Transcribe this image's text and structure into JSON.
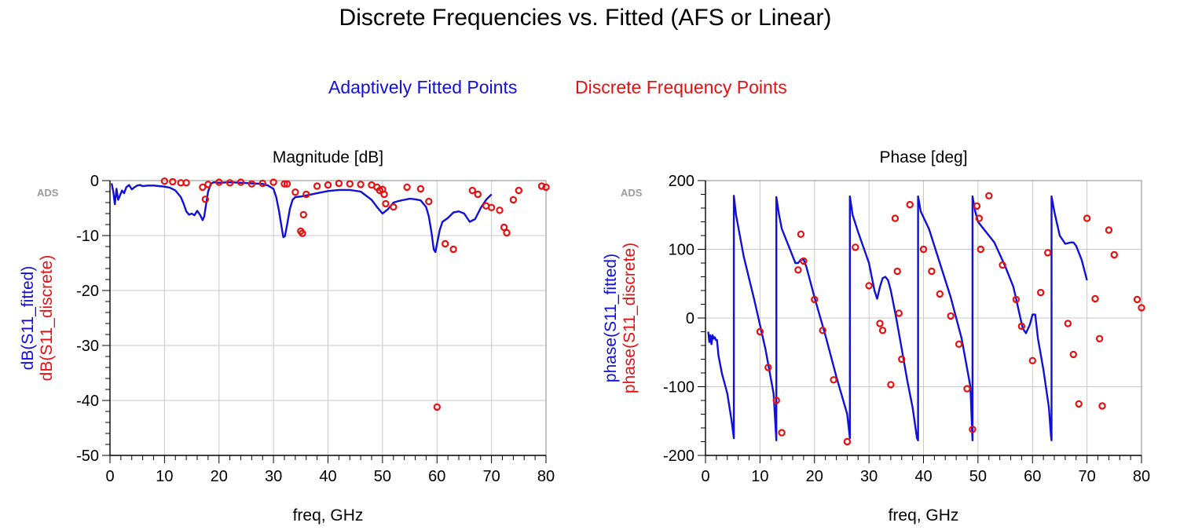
{
  "title": "Discrete Frequencies vs. Fitted (AFS or Linear)",
  "legend": {
    "fitted_label": "Adaptively Fitted Points",
    "discrete_label": "Discrete Frequency Points"
  },
  "colors": {
    "fitted": "#1010d8",
    "discrete": "#e61010",
    "grid": "#c8c8c8"
  },
  "watermark": "ADS",
  "chart_data": [
    {
      "type": "line",
      "title": "Magnitude [dB]",
      "xlabel": "freq, GHz",
      "ylabel_fitted": "dB(S11_fitted)",
      "ylabel_discrete": "dB(S11_discrete)",
      "xlim": [
        0,
        80
      ],
      "ylim": [
        -50,
        0
      ],
      "xticks": [
        0,
        10,
        20,
        30,
        40,
        50,
        60,
        70,
        80
      ],
      "yticks": [
        0,
        -10,
        -20,
        -30,
        -40,
        -50
      ],
      "grid": true,
      "series": [
        {
          "name": "Adaptively Fitted Points",
          "style": "line",
          "x": [
            0.3,
            0.6,
            0.9,
            1.2,
            1.5,
            1.8,
            2.2,
            2.6,
            3,
            3.5,
            4,
            4.5,
            5,
            5.5,
            6,
            7,
            8,
            9,
            10,
            11,
            12,
            13,
            13.5,
            14,
            14.5,
            15,
            15.5,
            16,
            16.5,
            17,
            17.3,
            17.6,
            18,
            18.5,
            19,
            20,
            22,
            24,
            26,
            28,
            29,
            30,
            30.5,
            31,
            31.5,
            31.8,
            32.1,
            32.5,
            33,
            33.5,
            34,
            35,
            36,
            38,
            40,
            42,
            44,
            46,
            48,
            49,
            50,
            51,
            52,
            53,
            54,
            55,
            56,
            57,
            58,
            58.5,
            59,
            59.4,
            59.7,
            60,
            60.5,
            61,
            62,
            63,
            64,
            65,
            66,
            67,
            68,
            69,
            70
          ],
          "values": [
            -0.5,
            -2,
            -4.3,
            -1.5,
            -3.5,
            -2.8,
            -1.8,
            -2.3,
            -1.2,
            -0.8,
            -1.6,
            -1.2,
            -0.9,
            -0.8,
            -1.0,
            -0.9,
            -0.9,
            -1.0,
            -1.1,
            -1.3,
            -1.8,
            -3.0,
            -4.2,
            -5.6,
            -6.2,
            -6.0,
            -6.3,
            -5.5,
            -6.2,
            -7.2,
            -6.5,
            -4.5,
            -2.0,
            -0.6,
            -0.3,
            -0.4,
            -0.3,
            -0.4,
            -0.5,
            -0.6,
            -0.9,
            -1.5,
            -3.0,
            -5.5,
            -8.5,
            -10.3,
            -10.1,
            -8.0,
            -5.2,
            -3.5,
            -3.0,
            -2.9,
            -2.7,
            -2.3,
            -1.9,
            -1.7,
            -1.7,
            -2.0,
            -3.5,
            -4.8,
            -6.0,
            -5.2,
            -4.0,
            -3.7,
            -3.5,
            -3.3,
            -3.4,
            -3.6,
            -4.8,
            -6.5,
            -9.5,
            -12.5,
            -13.0,
            -11.5,
            -9.0,
            -7.5,
            -6.8,
            -5.8,
            -5.6,
            -6.0,
            -7.5,
            -7.0,
            -5.0,
            -3.5,
            -2.5
          ]
        },
        {
          "name": "Discrete Frequency Points",
          "style": "markers",
          "x": [
            10,
            11.5,
            13,
            14,
            17,
            17.5,
            18,
            20,
            22,
            24,
            26,
            28,
            30,
            32,
            32.5,
            34,
            35,
            35.3,
            35.5,
            36,
            38,
            40,
            42,
            44,
            46,
            48,
            49,
            49.5,
            50,
            50.3,
            50.6,
            52,
            54.5,
            57,
            58.5,
            60,
            61.5,
            63,
            66.5,
            67.5,
            69,
            70,
            71.5,
            72.3,
            72.8,
            74,
            75,
            79.2,
            80
          ],
          "values": [
            -0.1,
            -0.2,
            -0.4,
            -0.4,
            -1.2,
            -3.4,
            -0.7,
            -0.3,
            -0.4,
            -0.3,
            -0.6,
            -0.5,
            -0.3,
            -0.6,
            -0.6,
            -2.1,
            -9.2,
            -9.6,
            -6.2,
            -2.5,
            -1.0,
            -0.8,
            -0.5,
            -0.6,
            -0.7,
            -0.8,
            -1.2,
            -1.8,
            -1.6,
            -2.5,
            -4.2,
            -4.8,
            -1.2,
            -1.5,
            -3.8,
            -41.2,
            -11.5,
            -12.5,
            -1.8,
            -2.5,
            -4.6,
            -4.9,
            -5.4,
            -8.5,
            -9.5,
            -3.5,
            -1.8,
            -1.0,
            -1.2
          ]
        }
      ]
    },
    {
      "type": "line",
      "title": "Phase [deg]",
      "xlabel": "freq, GHz",
      "ylabel_fitted": "phase(S11_fitted)",
      "ylabel_discrete": "phase(S11_discrete)",
      "xlim": [
        0,
        80
      ],
      "ylim": [
        -200,
        200
      ],
      "xticks": [
        0,
        10,
        20,
        30,
        40,
        50,
        60,
        70,
        80
      ],
      "yticks": [
        200,
        100,
        0,
        -100,
        -200
      ],
      "grid": true,
      "series": [
        {
          "name": "Adaptively Fitted Points",
          "style": "line",
          "x": [
            0.5,
            0.7,
            0.9,
            1.1,
            1.3,
            1.5,
            1.7,
            1.9,
            2.1,
            2.4,
            3,
            4,
            4.8,
            5.2,
            5.2,
            5.6,
            7,
            9,
            11,
            12.5,
            13,
            13,
            13.5,
            14,
            15,
            16,
            16.5,
            17,
            17.5,
            18,
            18.5,
            19,
            20,
            22,
            24,
            26,
            26.5,
            26.5,
            27,
            28,
            30,
            31,
            31.5,
            32,
            32.5,
            33,
            33.5,
            34,
            35,
            36,
            37,
            38,
            38.8,
            39,
            39,
            39.5,
            41,
            43,
            45,
            47,
            48.6,
            49,
            49,
            49.5,
            50,
            51,
            53,
            55,
            56.5,
            57.5,
            58.2,
            58.8,
            59.5,
            60,
            60.5,
            61,
            62,
            63,
            63.4,
            63.5,
            63.5,
            64,
            65,
            66,
            67,
            67.5,
            68,
            69,
            70
          ],
          "values": [
            -20,
            -35,
            -25,
            -38,
            -25,
            -30,
            -28,
            -32,
            -32,
            -55,
            -80,
            -110,
            -150,
            -175,
            178,
            150,
            90,
            25,
            -45,
            -110,
            -178,
            176,
            150,
            130,
            110,
            90,
            80,
            80,
            85,
            85,
            75,
            60,
            30,
            -25,
            -85,
            -140,
            -175,
            177,
            150,
            125,
            80,
            40,
            28,
            45,
            58,
            60,
            55,
            40,
            0,
            -45,
            -90,
            -130,
            -175,
            -178,
            177,
            155,
            130,
            80,
            30,
            -30,
            -100,
            -178,
            177,
            155,
            140,
            130,
            110,
            75,
            45,
            10,
            -15,
            -22,
            -10,
            5,
            5,
            -30,
            -75,
            -130,
            -172,
            -178,
            177,
            155,
            120,
            108,
            110,
            110,
            105,
            85,
            55
          ]
        },
        {
          "name": "Discrete Frequency Points",
          "style": "markers",
          "x": [
            10,
            11.5,
            13,
            14,
            17,
            17.5,
            18,
            20,
            21.5,
            23.5,
            26,
            27.5,
            30,
            32,
            32.5,
            34,
            34.8,
            35.2,
            35.5,
            36,
            37.5,
            40,
            41.5,
            43,
            45,
            46.5,
            48,
            49,
            49.8,
            50.2,
            50.5,
            52,
            54.5,
            57,
            58,
            60,
            61.5,
            62.8,
            66.5,
            67.5,
            68.5,
            70,
            71.5,
            72.3,
            72.8,
            74,
            75,
            79.2,
            80
          ],
          "values": [
            -20,
            -72,
            -120,
            -167,
            70,
            122,
            83,
            27,
            -18,
            -90,
            -180,
            103,
            47,
            -8,
            -18,
            -97,
            145,
            68,
            7,
            -60,
            165,
            100,
            68,
            35,
            3,
            -38,
            -103,
            -162,
            163,
            145,
            100,
            178,
            77,
            27,
            -12,
            -62,
            37,
            95,
            -8,
            -53,
            -125,
            145,
            28,
            -30,
            -128,
            128,
            92,
            27,
            15
          ]
        }
      ]
    }
  ]
}
